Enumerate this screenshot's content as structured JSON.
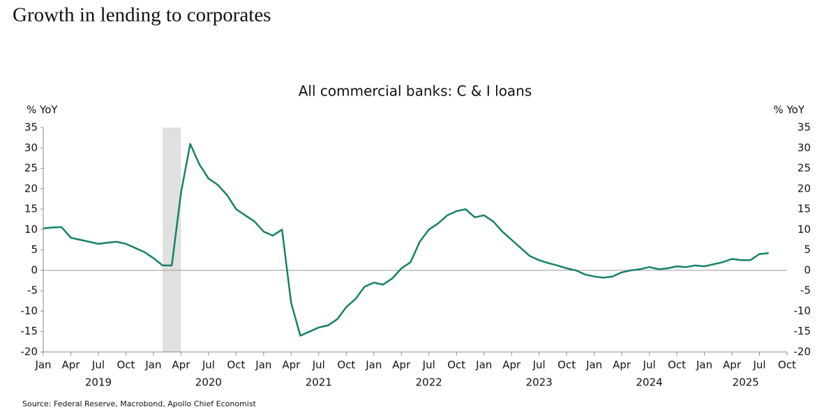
{
  "chart_data": {
    "type": "line",
    "title": "Growth in lending to corporates",
    "subtitle": "All commercial banks: C & I loans",
    "ylabel": "% YoY",
    "y2label": "% YoY",
    "source": "Source: Federal Reserve, Macrobond, Apollo Chief Economist",
    "x": [
      "2019-01",
      "2019-02",
      "2019-03",
      "2019-04",
      "2019-05",
      "2019-06",
      "2019-07",
      "2019-08",
      "2019-09",
      "2019-10",
      "2019-11",
      "2019-12",
      "2020-01",
      "2020-02",
      "2020-03",
      "2020-04",
      "2020-05",
      "2020-06",
      "2020-07",
      "2020-08",
      "2020-09",
      "2020-10",
      "2020-11",
      "2020-12",
      "2021-01",
      "2021-02",
      "2021-03",
      "2021-04",
      "2021-05",
      "2021-06",
      "2021-07",
      "2021-08",
      "2021-09",
      "2021-10",
      "2021-11",
      "2021-12",
      "2022-01",
      "2022-02",
      "2022-03",
      "2022-04",
      "2022-05",
      "2022-06",
      "2022-07",
      "2022-08",
      "2022-09",
      "2022-10",
      "2022-11",
      "2022-12",
      "2023-01",
      "2023-02",
      "2023-03",
      "2023-04",
      "2023-05",
      "2023-06",
      "2023-07",
      "2023-08",
      "2023-09",
      "2023-10",
      "2023-11",
      "2023-12",
      "2024-01",
      "2024-02",
      "2024-03",
      "2024-04",
      "2024-05",
      "2024-06",
      "2024-07",
      "2024-08",
      "2024-09",
      "2024-10",
      "2024-11",
      "2024-12",
      "2025-01",
      "2025-02",
      "2025-03",
      "2025-04",
      "2025-05",
      "2025-06",
      "2025-07",
      "2025-08"
    ],
    "series": [
      {
        "name": "C & I loans",
        "color": "#15806a",
        "values": [
          10.3,
          10.5,
          10.6,
          8,
          7.5,
          7,
          6.5,
          6.8,
          7,
          6.5,
          5.5,
          4.5,
          3,
          1.2,
          1.2,
          19,
          31,
          26,
          22.5,
          21,
          18.5,
          15,
          13.5,
          12,
          9.5,
          8.5,
          10,
          -8,
          -16,
          -15,
          -14,
          -13.5,
          -12,
          -9,
          -7,
          -4,
          -3,
          -3.5,
          -2,
          0.5,
          2,
          7,
          10,
          11.5,
          13.5,
          14.5,
          15,
          13,
          13.5,
          12,
          9.5,
          7.5,
          5.5,
          3.5,
          2.5,
          1.8,
          1.2,
          0.5,
          0,
          -1,
          -1.5,
          -1.8,
          -1.5,
          -0.5,
          0,
          0.3,
          0.8,
          0.3,
          0.5,
          1,
          0.8,
          1.2,
          1,
          1.5,
          2,
          2.8,
          2.5,
          2.5,
          4,
          4.2
        ]
      }
    ],
    "recession": [
      "2020-02",
      "2020-04"
    ],
    "xlim": [
      "2019-01",
      "2025-10"
    ],
    "xticks": [
      {
        "value": "2019-01",
        "label": "Jan"
      },
      {
        "value": "2019-04",
        "label": "Apr"
      },
      {
        "value": "2019-07",
        "label": "Jul"
      },
      {
        "value": "2019-10",
        "label": "Oct"
      },
      {
        "value": "2020-01",
        "label": "Jan"
      },
      {
        "value": "2020-04",
        "label": "Apr"
      },
      {
        "value": "2020-07",
        "label": "Jul"
      },
      {
        "value": "2020-10",
        "label": "Oct"
      },
      {
        "value": "2021-01",
        "label": "Jan"
      },
      {
        "value": "2021-04",
        "label": "Apr"
      },
      {
        "value": "2021-07",
        "label": "Jul"
      },
      {
        "value": "2021-10",
        "label": "Oct"
      },
      {
        "value": "2022-01",
        "label": "Jan"
      },
      {
        "value": "2022-04",
        "label": "Apr"
      },
      {
        "value": "2022-07",
        "label": "Jul"
      },
      {
        "value": "2022-10",
        "label": "Oct"
      },
      {
        "value": "2023-01",
        "label": "Jan"
      },
      {
        "value": "2023-04",
        "label": "Apr"
      },
      {
        "value": "2023-07",
        "label": "Jul"
      },
      {
        "value": "2023-10",
        "label": "Oct"
      },
      {
        "value": "2024-01",
        "label": "Jan"
      },
      {
        "value": "2024-04",
        "label": "Apr"
      },
      {
        "value": "2024-07",
        "label": "Jul"
      },
      {
        "value": "2024-10",
        "label": "Oct"
      },
      {
        "value": "2025-01",
        "label": "Jan"
      },
      {
        "value": "2025-04",
        "label": "Apr"
      },
      {
        "value": "2025-07",
        "label": "Jul"
      },
      {
        "value": "2025-10",
        "label": "Oct"
      }
    ],
    "years": [
      "2019",
      "2020",
      "2021",
      "2022",
      "2023",
      "2024",
      "2025"
    ],
    "ylim": [
      -20,
      35
    ],
    "yticks": [
      -20,
      -15,
      -10,
      -5,
      0,
      5,
      10,
      15,
      20,
      25,
      30,
      35
    ],
    "y2lim": [
      -20,
      35
    ],
    "y2ticks": [
      -20,
      -15,
      -10,
      -5,
      0,
      5,
      10,
      15,
      20,
      25,
      30,
      35
    ]
  }
}
